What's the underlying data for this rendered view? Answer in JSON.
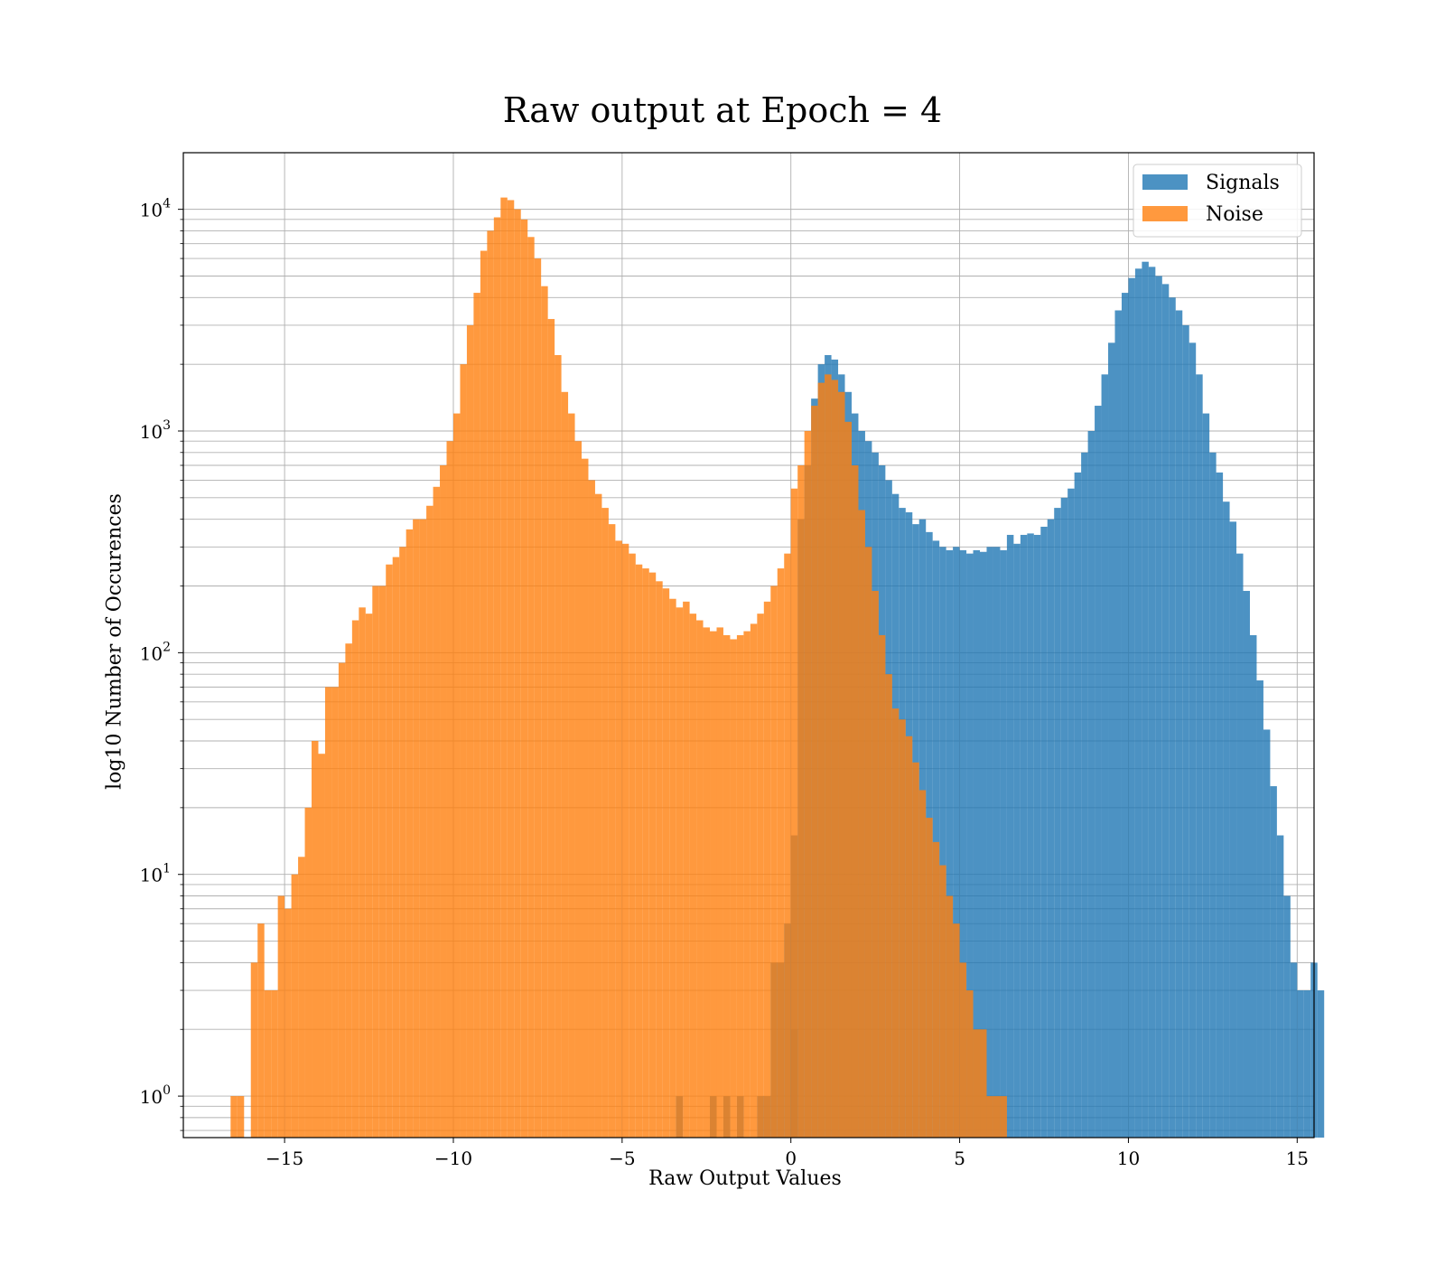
{
  "chart_data": {
    "type": "bar",
    "title": "Raw output at Epoch = 4",
    "xlabel": "Raw Output Values",
    "ylabel": "log10 Number of Occurences",
    "xlim": [
      -18,
      15.5
    ],
    "ylim": [
      0.65,
      18000
    ],
    "yscale": "log",
    "grid": true,
    "legend_position": "top-right",
    "bin_width": 0.2,
    "x_ticks": [
      -15,
      -10,
      -5,
      0,
      5,
      10,
      15
    ],
    "y_tick_labels": [
      {
        "base": "10",
        "exp": "0",
        "value": 1
      },
      {
        "base": "10",
        "exp": "1",
        "value": 10
      },
      {
        "base": "10",
        "exp": "2",
        "value": 100
      },
      {
        "base": "10",
        "exp": "3",
        "value": 1000
      },
      {
        "base": "10",
        "exp": "4",
        "value": 10000
      }
    ],
    "x_tick_labels": [
      "−15",
      "−10",
      "−5",
      "0",
      "5",
      "10",
      "15"
    ],
    "series": [
      {
        "name": "Signals",
        "color": "#1f77b4",
        "opacity": 0.8,
        "bins": [
          [
            -3.4,
            1
          ],
          [
            -2.4,
            1
          ],
          [
            -2.0,
            1
          ],
          [
            -1.6,
            1
          ],
          [
            -1.0,
            1
          ],
          [
            -0.8,
            1
          ],
          [
            -0.6,
            4
          ],
          [
            -0.4,
            4
          ],
          [
            -0.2,
            6
          ],
          [
            0.0,
            2
          ],
          [
            0.0,
            15
          ],
          [
            0.2,
            400
          ],
          [
            0.4,
            700
          ],
          [
            0.6,
            1400
          ],
          [
            0.8,
            2000
          ],
          [
            1.0,
            2200
          ],
          [
            1.2,
            2100
          ],
          [
            1.4,
            1800
          ],
          [
            1.6,
            1500
          ],
          [
            1.8,
            1200
          ],
          [
            2.0,
            1000
          ],
          [
            2.2,
            900
          ],
          [
            2.4,
            800
          ],
          [
            2.6,
            700
          ],
          [
            2.8,
            600
          ],
          [
            3.0,
            520
          ],
          [
            3.2,
            450
          ],
          [
            3.4,
            430
          ],
          [
            3.6,
            380
          ],
          [
            3.8,
            400
          ],
          [
            4.0,
            350
          ],
          [
            4.2,
            320
          ],
          [
            4.4,
            300
          ],
          [
            4.6,
            290
          ],
          [
            4.8,
            300
          ],
          [
            5.0,
            290
          ],
          [
            5.2,
            280
          ],
          [
            5.4,
            290
          ],
          [
            5.6,
            285
          ],
          [
            5.8,
            300
          ],
          [
            6.0,
            300
          ],
          [
            6.2,
            290
          ],
          [
            6.4,
            340
          ],
          [
            6.6,
            310
          ],
          [
            6.8,
            340
          ],
          [
            7.0,
            345
          ],
          [
            7.2,
            340
          ],
          [
            7.4,
            370
          ],
          [
            7.6,
            400
          ],
          [
            7.8,
            450
          ],
          [
            8.0,
            500
          ],
          [
            8.2,
            550
          ],
          [
            8.4,
            650
          ],
          [
            8.6,
            800
          ],
          [
            8.8,
            1000
          ],
          [
            9.0,
            1300
          ],
          [
            9.2,
            1800
          ],
          [
            9.4,
            2500
          ],
          [
            9.6,
            3500
          ],
          [
            9.8,
            4200
          ],
          [
            10.0,
            4900
          ],
          [
            10.2,
            5400
          ],
          [
            10.4,
            5800
          ],
          [
            10.6,
            5500
          ],
          [
            10.8,
            5000
          ],
          [
            11.0,
            4600
          ],
          [
            11.2,
            4000
          ],
          [
            11.4,
            3500
          ],
          [
            11.6,
            3000
          ],
          [
            11.8,
            2500
          ],
          [
            12.0,
            1800
          ],
          [
            12.2,
            1200
          ],
          [
            12.4,
            800
          ],
          [
            12.6,
            650
          ],
          [
            12.8,
            480
          ],
          [
            13.0,
            390
          ],
          [
            13.2,
            280
          ],
          [
            13.4,
            190
          ],
          [
            13.6,
            120
          ],
          [
            13.8,
            75
          ],
          [
            14.0,
            45
          ],
          [
            14.2,
            25
          ],
          [
            14.4,
            15
          ],
          [
            14.6,
            8
          ],
          [
            14.8,
            4
          ],
          [
            15.0,
            3
          ],
          [
            15.2,
            3
          ],
          [
            15.4,
            4
          ],
          [
            15.6,
            3
          ]
        ]
      },
      {
        "name": "Noise",
        "color": "#ff7f0e",
        "opacity": 0.8,
        "bins": [
          [
            -16.6,
            1
          ],
          [
            -16.4,
            1
          ],
          [
            -16.0,
            4
          ],
          [
            -15.8,
            6
          ],
          [
            -15.6,
            3
          ],
          [
            -15.4,
            3
          ],
          [
            -15.2,
            8
          ],
          [
            -15.0,
            7
          ],
          [
            -14.8,
            10
          ],
          [
            -14.6,
            12
          ],
          [
            -14.4,
            20
          ],
          [
            -14.2,
            40
          ],
          [
            -14.0,
            35
          ],
          [
            -13.8,
            70
          ],
          [
            -13.6,
            70
          ],
          [
            -13.4,
            90
          ],
          [
            -13.2,
            110
          ],
          [
            -13.0,
            140
          ],
          [
            -12.8,
            160
          ],
          [
            -12.6,
            150
          ],
          [
            -12.4,
            200
          ],
          [
            -12.2,
            200
          ],
          [
            -12.0,
            250
          ],
          [
            -11.8,
            270
          ],
          [
            -11.6,
            300
          ],
          [
            -11.4,
            360
          ],
          [
            -11.2,
            400
          ],
          [
            -11.0,
            400
          ],
          [
            -10.8,
            460
          ],
          [
            -10.6,
            560
          ],
          [
            -10.4,
            700
          ],
          [
            -10.2,
            900
          ],
          [
            -10.0,
            1200
          ],
          [
            -9.8,
            2000
          ],
          [
            -9.6,
            3000
          ],
          [
            -9.4,
            4200
          ],
          [
            -9.2,
            6500
          ],
          [
            -9.0,
            8000
          ],
          [
            -8.8,
            9200
          ],
          [
            -8.6,
            11300
          ],
          [
            -8.4,
            11000
          ],
          [
            -8.2,
            10000
          ],
          [
            -8.0,
            9000
          ],
          [
            -7.8,
            7500
          ],
          [
            -7.6,
            6000
          ],
          [
            -7.4,
            4500
          ],
          [
            -7.2,
            3200
          ],
          [
            -7.0,
            2200
          ],
          [
            -6.8,
            1500
          ],
          [
            -6.6,
            1200
          ],
          [
            -6.4,
            900
          ],
          [
            -6.2,
            750
          ],
          [
            -6.0,
            600
          ],
          [
            -5.8,
            520
          ],
          [
            -5.6,
            450
          ],
          [
            -5.4,
            380
          ],
          [
            -5.2,
            320
          ],
          [
            -5.0,
            310
          ],
          [
            -4.8,
            280
          ],
          [
            -4.6,
            250
          ],
          [
            -4.4,
            240
          ],
          [
            -4.2,
            230
          ],
          [
            -4.0,
            210
          ],
          [
            -3.8,
            195
          ],
          [
            -3.6,
            175
          ],
          [
            -3.4,
            160
          ],
          [
            -3.2,
            170
          ],
          [
            -3.0,
            150
          ],
          [
            -2.8,
            140
          ],
          [
            -2.6,
            130
          ],
          [
            -2.4,
            125
          ],
          [
            -2.2,
            130
          ],
          [
            -2.0,
            120
          ],
          [
            -1.8,
            115
          ],
          [
            -1.6,
            120
          ],
          [
            -1.4,
            125
          ],
          [
            -1.2,
            135
          ],
          [
            -1.0,
            150
          ],
          [
            -0.8,
            170
          ],
          [
            -0.6,
            200
          ],
          [
            -0.4,
            240
          ],
          [
            -0.2,
            280
          ],
          [
            0.0,
            550
          ],
          [
            0.2,
            700
          ],
          [
            0.4,
            1000
          ],
          [
            0.6,
            1300
          ],
          [
            0.8,
            1650
          ],
          [
            1.0,
            1800
          ],
          [
            1.2,
            1700
          ],
          [
            1.4,
            1500
          ],
          [
            1.6,
            1100
          ],
          [
            1.8,
            700
          ],
          [
            2.0,
            440
          ],
          [
            2.2,
            300
          ],
          [
            2.4,
            190
          ],
          [
            2.6,
            120
          ],
          [
            2.8,
            80
          ],
          [
            3.0,
            56
          ],
          [
            3.2,
            50
          ],
          [
            3.4,
            42
          ],
          [
            3.6,
            32
          ],
          [
            3.8,
            24
          ],
          [
            4.0,
            18
          ],
          [
            4.2,
            14
          ],
          [
            4.4,
            11
          ],
          [
            4.6,
            8
          ],
          [
            4.8,
            6
          ],
          [
            5.0,
            4
          ],
          [
            5.2,
            3
          ],
          [
            5.4,
            2
          ],
          [
            5.6,
            2
          ],
          [
            5.8,
            1
          ],
          [
            6.0,
            1
          ],
          [
            6.2,
            1
          ]
        ]
      }
    ]
  }
}
